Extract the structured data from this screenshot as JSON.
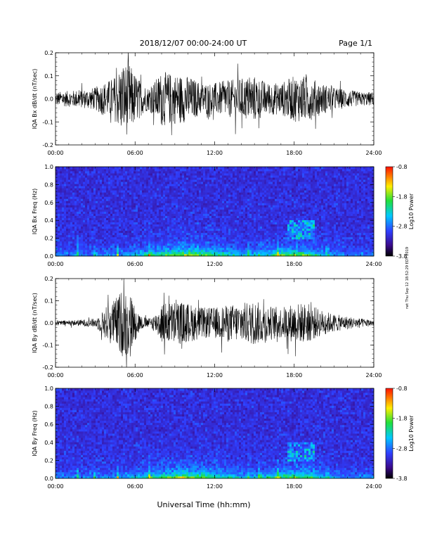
{
  "header": {
    "title": "2018/12/07  00:00-24:00 UT",
    "page": "Page 1/1"
  },
  "side_note": "rwt Thu Sep 12 18:52:29 EDT 2019",
  "xlabel": "Universal Time (hh:mm)",
  "chart_data": [
    {
      "type": "line",
      "ylabel": "IQA Bx dB/dt (nT/sec)",
      "xlim": [
        0,
        24
      ],
      "ylim": [
        -0.2,
        0.2
      ],
      "xticks": [
        "00:00",
        "06:00",
        "12:00",
        "18:00",
        "24:00"
      ],
      "yticks": [
        "-0.2",
        "-0.1",
        "0.0",
        "0.1",
        "0.2"
      ],
      "envelope": {
        "hours": [
          0,
          1,
          2,
          3,
          3.5,
          4,
          4.5,
          5,
          5.5,
          6,
          6.5,
          7,
          7.5,
          8,
          9,
          10,
          11,
          12,
          13,
          14,
          15,
          16,
          17,
          18,
          19,
          20,
          21,
          22,
          23,
          24
        ],
        "amplitude": [
          0.03,
          0.035,
          0.04,
          0.05,
          0.07,
          0.08,
          0.1,
          0.15,
          0.16,
          0.11,
          0.07,
          0.05,
          0.08,
          0.12,
          0.11,
          0.1,
          0.07,
          0.07,
          0.08,
          0.09,
          0.1,
          0.07,
          0.07,
          0.1,
          0.1,
          0.07,
          0.05,
          0.04,
          0.03,
          0.03
        ]
      }
    },
    {
      "type": "heatmap",
      "ylabel": "IQA Bx Freq (Hz)",
      "xlim": [
        0,
        24
      ],
      "ylim": [
        0,
        1.0
      ],
      "xticks": [
        "00:00",
        "06:00",
        "12:00",
        "18:00",
        "24:00"
      ],
      "yticks": [
        "0.0",
        "0.2",
        "0.4",
        "0.6",
        "0.8",
        "1.0"
      ],
      "colorbar": {
        "label": "Log10 Power",
        "range": [
          -3.8,
          -0.8
        ],
        "ticks": [
          "-0.8",
          "-1.8",
          "-2.8",
          "-3.8"
        ]
      }
    },
    {
      "type": "line",
      "ylabel": "IQA By dB/dt (nT/sec)",
      "xlim": [
        0,
        24
      ],
      "ylim": [
        -0.2,
        0.2
      ],
      "xticks": [
        "00:00",
        "06:00",
        "12:00",
        "18:00",
        "24:00"
      ],
      "yticks": [
        "-0.2",
        "-0.1",
        "0.0",
        "0.1",
        "0.2"
      ],
      "envelope": {
        "hours": [
          0,
          1,
          2,
          3,
          3.5,
          4,
          4.5,
          5,
          5.5,
          6,
          6.5,
          7,
          7.5,
          8,
          9,
          10,
          11,
          12,
          13,
          14,
          15,
          16,
          17,
          18,
          19,
          20,
          21,
          22,
          23,
          24
        ],
        "amplitude": [
          0.01,
          0.012,
          0.015,
          0.02,
          0.05,
          0.09,
          0.11,
          0.15,
          0.16,
          0.08,
          0.03,
          0.02,
          0.04,
          0.09,
          0.1,
          0.09,
          0.07,
          0.07,
          0.08,
          0.09,
          0.1,
          0.08,
          0.07,
          0.09,
          0.09,
          0.06,
          0.04,
          0.03,
          0.02,
          0.015
        ]
      }
    },
    {
      "type": "heatmap",
      "ylabel": "IQA By Freq (Hz)",
      "xlim": [
        0,
        24
      ],
      "ylim": [
        0,
        1.0
      ],
      "xticks": [
        "00:00",
        "06:00",
        "12:00",
        "18:00",
        "24:00"
      ],
      "yticks": [
        "0.0",
        "0.2",
        "0.4",
        "0.6",
        "0.8",
        "1.0"
      ],
      "colorbar": {
        "label": "Log10 Power",
        "range": [
          -3.8,
          -0.8
        ],
        "ticks": [
          "-0.8",
          "-1.8",
          "-2.8",
          "-3.8"
        ]
      }
    }
  ]
}
